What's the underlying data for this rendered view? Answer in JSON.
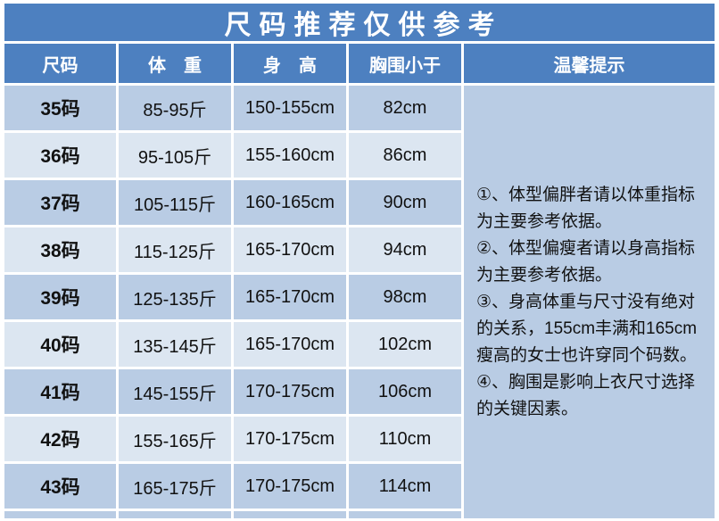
{
  "title": "尺码推荐仅供参考",
  "colors": {
    "header_blue": "#4d80c0",
    "row_odd": "#b9cce4",
    "row_even": "#dce6f1",
    "text_dark": "#111111",
    "text_white": "#ffffff"
  },
  "table": {
    "headers": {
      "size": "尺码",
      "weight": "体　重",
      "height": "身　高",
      "chest": "胸围小于",
      "tips": "温馨提示"
    },
    "rows": [
      {
        "size": "35码",
        "weight": "85-95斤",
        "height": "150-155cm",
        "chest": "82cm"
      },
      {
        "size": "36码",
        "weight": "95-105斤",
        "height": "155-160cm",
        "chest": "86cm"
      },
      {
        "size": "37码",
        "weight": "105-115斤",
        "height": "160-165cm",
        "chest": "90cm"
      },
      {
        "size": "38码",
        "weight": "115-125斤",
        "height": "165-170cm",
        "chest": "94cm"
      },
      {
        "size": "39码",
        "weight": "125-135斤",
        "height": "165-170cm",
        "chest": "98cm"
      },
      {
        "size": "40码",
        "weight": "135-145斤",
        "height": "165-170cm",
        "chest": "102cm"
      },
      {
        "size": "41码",
        "weight": "145-155斤",
        "height": "170-175cm",
        "chest": "106cm"
      },
      {
        "size": "42码",
        "weight": "155-165斤",
        "height": "170-175cm",
        "chest": "110cm"
      },
      {
        "size": "43码",
        "weight": "165-175斤",
        "height": "170-175cm",
        "chest": "114cm"
      }
    ],
    "tips": [
      "①、体型偏胖者请以体重指标为主要参考依据。",
      "②、体型偏瘦者请以身高指标为主要参考依据。",
      "③、身高体重与尺寸没有绝对的关系，155cm丰满和165cm瘦高的女士也许穿同个码数。",
      "④、胸围是影响上衣尺寸选择的关键因素。"
    ]
  },
  "chart_data": {
    "type": "table",
    "title": "尺码推荐仅供参考",
    "columns": [
      "尺码",
      "体重",
      "身高",
      "胸围小于"
    ],
    "rows": [
      [
        "35码",
        "85-95斤",
        "150-155cm",
        "82cm"
      ],
      [
        "36码",
        "95-105斤",
        "155-160cm",
        "86cm"
      ],
      [
        "37码",
        "105-115斤",
        "160-165cm",
        "90cm"
      ],
      [
        "38码",
        "115-125斤",
        "165-170cm",
        "94cm"
      ],
      [
        "39码",
        "125-135斤",
        "165-170cm",
        "98cm"
      ],
      [
        "40码",
        "135-145斤",
        "165-170cm",
        "102cm"
      ],
      [
        "41码",
        "145-155斤",
        "170-175cm",
        "106cm"
      ],
      [
        "42码",
        "155-165斤",
        "170-175cm",
        "110cm"
      ],
      [
        "43码",
        "165-175斤",
        "170-175cm",
        "114cm"
      ]
    ],
    "notes_header": "温馨提示",
    "notes": [
      "①、体型偏胖者请以体重指标为主要参考依据。",
      "②、体型偏瘦者请以身高指标为主要参考依据。",
      "③、身高体重与尺寸没有绝对的关系，155cm丰满和165cm瘦高的女士也许穿同个码数。",
      "④、胸围是影响上衣尺寸选择的关键因素。"
    ]
  }
}
